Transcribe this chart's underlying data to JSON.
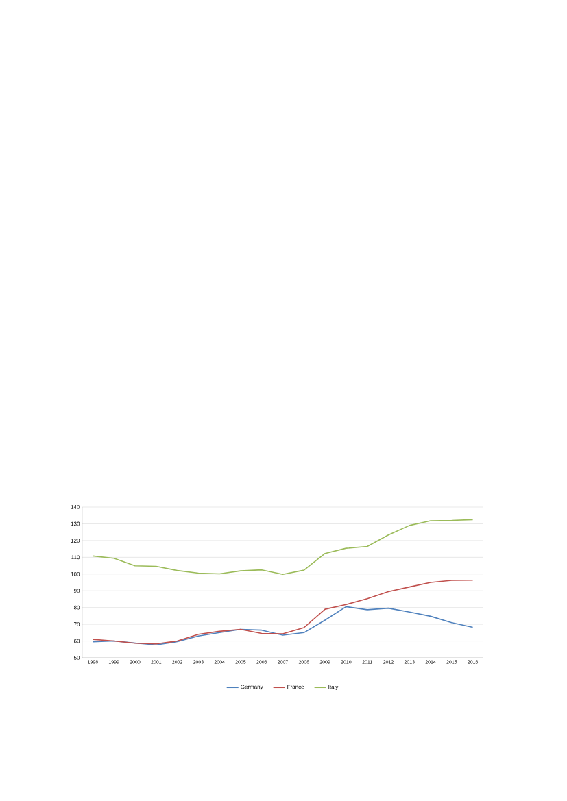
{
  "chart_data": {
    "type": "line",
    "categories": [
      "1998",
      "1999",
      "2000",
      "2001",
      "2002",
      "2003",
      "2004",
      "2005",
      "2006",
      "2007",
      "2008",
      "2009",
      "2010",
      "2011",
      "2012",
      "2013",
      "2014",
      "2015",
      "2016"
    ],
    "series": [
      {
        "name": "Germany",
        "color": "#4f81bd",
        "values": [
          59.5,
          60,
          58.8,
          57.7,
          59.6,
          63,
          65,
          67,
          66.5,
          63.5,
          65,
          72.5,
          80.5,
          78.7,
          79.6,
          77.3,
          74.8,
          71,
          68.2
        ]
      },
      {
        "name": "France",
        "color": "#c0504d",
        "values": [
          61,
          60,
          58.7,
          58.3,
          60,
          64,
          65.8,
          67,
          64.5,
          64.3,
          68,
          79,
          81.8,
          85.3,
          89.5,
          92.3,
          95,
          96.2,
          96.3
        ]
      },
      {
        "name": "Italy",
        "color": "#9bbb59",
        "values": [
          110.8,
          109.4,
          104.9,
          104.6,
          102.1,
          100.5,
          100.1,
          101.9,
          102.5,
          99.8,
          102.3,
          112.3,
          115.4,
          116.5,
          123.3,
          129,
          131.8,
          132,
          132.5
        ]
      }
    ],
    "ylim": [
      50,
      140
    ],
    "yticks": [
      50,
      60,
      70,
      80,
      90,
      100,
      110,
      120,
      130,
      140
    ],
    "grid": "y",
    "legend": "bottom"
  }
}
